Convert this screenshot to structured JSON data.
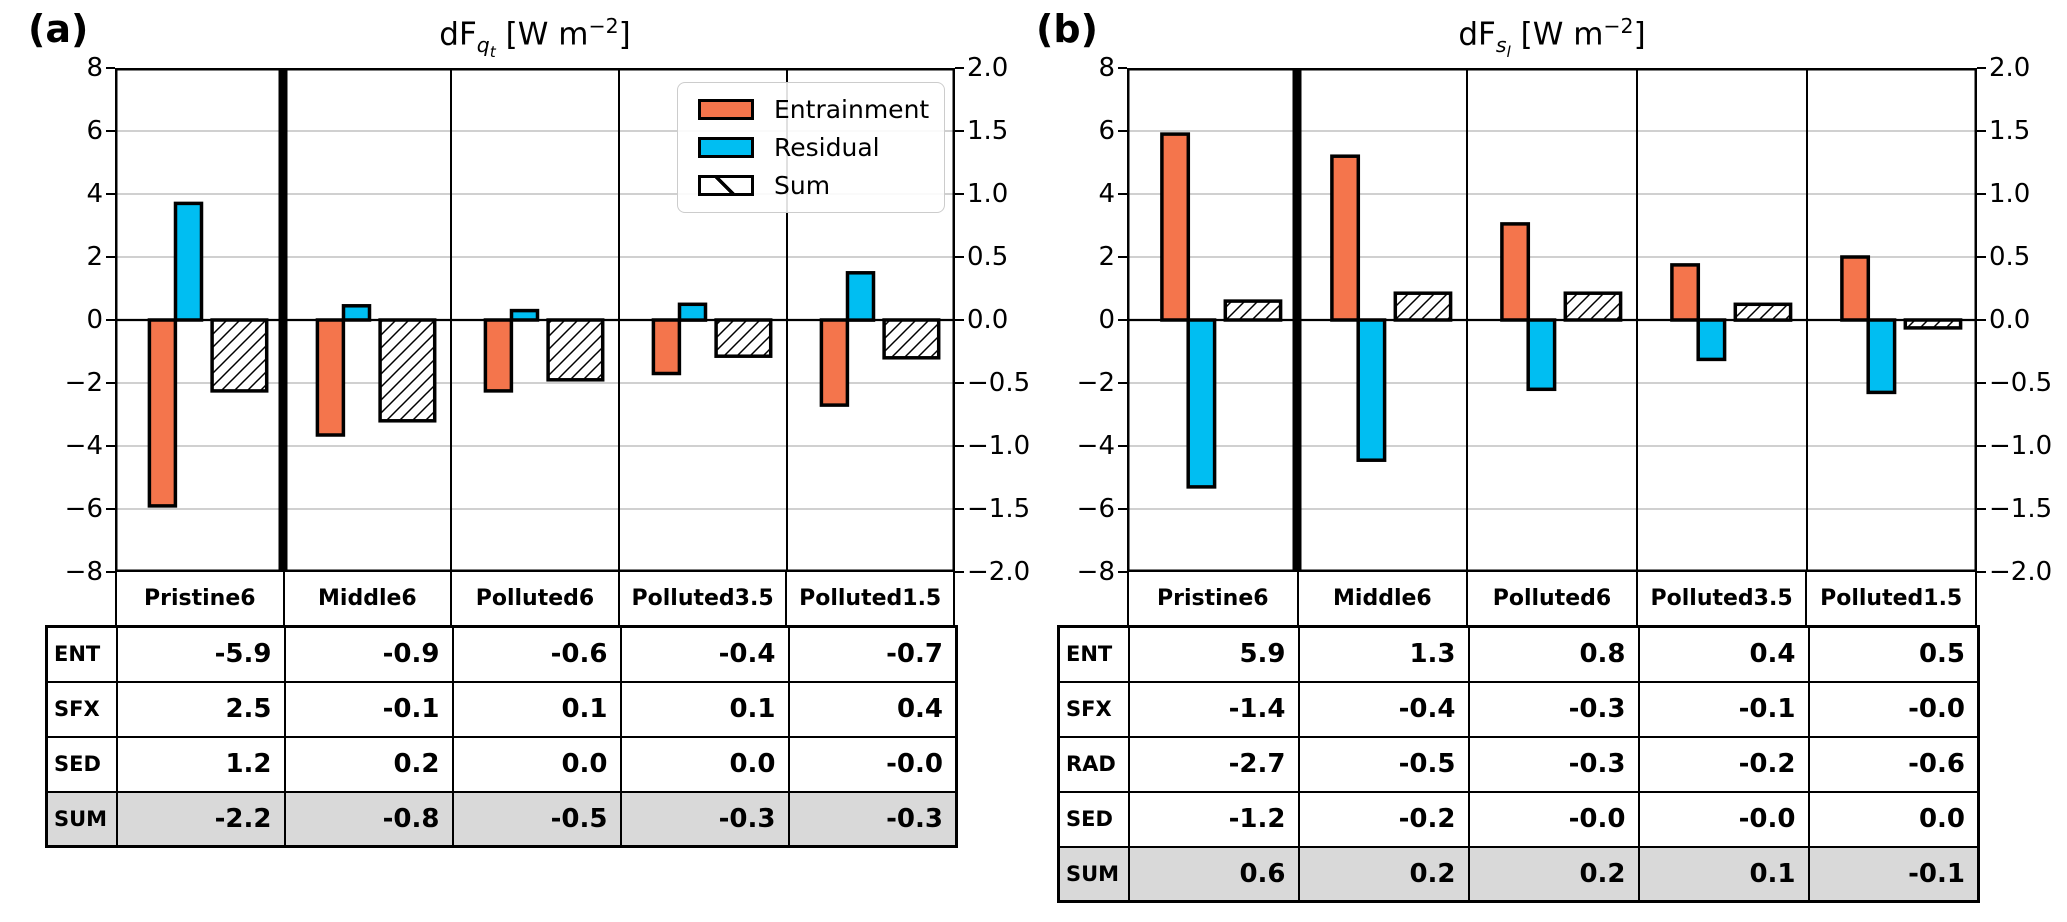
{
  "figure": {
    "panels": [
      {
        "label": "(a)",
        "title": {
          "base": "dF",
          "sub": "q",
          "subsub": "t",
          "units_pre": " [W m",
          "exp": "−2",
          "units_post": "]"
        },
        "legend": {
          "items": [
            {
              "label": "Entrainment",
              "swatch": "entrainment"
            },
            {
              "label": "Residual",
              "swatch": "residual"
            },
            {
              "label": "Sum",
              "swatch": "sum-hatched"
            }
          ]
        }
      },
      {
        "label": "(b)",
        "title": {
          "base": "dF",
          "sub": "s",
          "subsub": "l",
          "units_pre": " [W m",
          "exp": "−2",
          "units_post": "]"
        }
      }
    ]
  },
  "chart_data": [
    {
      "type": "bar",
      "panel": "a",
      "title": "dF_qt [W m^-2]",
      "categories": [
        "Pristine6",
        "Middle6",
        "Polluted6",
        "Polluted3.5",
        "Polluted1.5"
      ],
      "axes": {
        "left_range": [
          -8,
          8
        ],
        "right_range": [
          -2.0,
          2.0
        ],
        "left_tick_labels": [
          "8",
          "6",
          "4",
          "2",
          "0",
          "−2",
          "−4",
          "−6",
          "−8"
        ],
        "right_tick_labels": [
          "2.0",
          "1.5",
          "1.0",
          "0.5",
          "0.0",
          "−0.5",
          "−1.0",
          "−1.5",
          "−2.0"
        ],
        "grid": true,
        "note": "First category (Pristine6) is read on the left axis; remaining categories are read on the right axis (4x zoom). A thick vertical divider separates them."
      },
      "legend_position": "upper right",
      "series": [
        {
          "name": "Entrainment",
          "color": "#F4754C",
          "hatch": false,
          "values": [
            -5.9,
            -3.65,
            -2.25,
            -1.7,
            -2.7
          ],
          "right_axis_values": [
            null,
            -0.9,
            -0.6,
            -0.4,
            -0.7
          ]
        },
        {
          "name": "Residual",
          "color": "#00BEF2",
          "hatch": false,
          "values": [
            3.7,
            0.45,
            0.3,
            0.5,
            1.5
          ],
          "right_axis_values": [
            null,
            0.1,
            0.1,
            0.1,
            0.4
          ]
        },
        {
          "name": "Sum",
          "color": "#FFFFFF",
          "hatch": true,
          "values": [
            -2.25,
            -3.2,
            -1.9,
            -1.15,
            -1.2
          ],
          "right_axis_values": [
            null,
            -0.8,
            -0.5,
            -0.3,
            -0.3
          ]
        }
      ],
      "table": {
        "rows": [
          {
            "label": "ENT",
            "values": [
              "-5.9",
              "-0.9",
              "-0.6",
              "-0.4",
              "-0.7"
            ]
          },
          {
            "label": "SFX",
            "values": [
              "2.5",
              "-0.1",
              "0.1",
              "0.1",
              "0.4"
            ]
          },
          {
            "label": "SED",
            "values": [
              "1.2",
              "0.2",
              "0.0",
              "0.0",
              "-0.0"
            ]
          },
          {
            "label": "SUM",
            "values": [
              "-2.2",
              "-0.8",
              "-0.5",
              "-0.3",
              "-0.3"
            ]
          }
        ]
      }
    },
    {
      "type": "bar",
      "panel": "b",
      "title": "dF_sl [W m^-2]",
      "categories": [
        "Pristine6",
        "Middle6",
        "Polluted6",
        "Polluted3.5",
        "Polluted1.5"
      ],
      "axes": {
        "left_range": [
          -8,
          8
        ],
        "right_range": [
          -2.0,
          2.0
        ],
        "left_tick_labels": [
          "8",
          "6",
          "4",
          "2",
          "0",
          "−2",
          "−4",
          "−6",
          "−8"
        ],
        "right_tick_labels": [
          "2.0",
          "1.5",
          "1.0",
          "0.5",
          "0.0",
          "−0.5",
          "−1.0",
          "−1.5",
          "−2.0"
        ],
        "grid": true,
        "note": "First category (Pristine6) is read on the left axis; remaining categories are read on the right axis (4x zoom). A thick vertical divider separates them."
      },
      "series": [
        {
          "name": "Entrainment",
          "color": "#F4754C",
          "hatch": false,
          "values": [
            5.9,
            5.2,
            3.05,
            1.75,
            2.0
          ],
          "right_axis_values": [
            null,
            1.3,
            0.8,
            0.4,
            0.5
          ]
        },
        {
          "name": "Residual",
          "color": "#00BEF2",
          "hatch": false,
          "values": [
            -5.3,
            -4.45,
            -2.2,
            -1.25,
            -2.3
          ],
          "right_axis_values": [
            null,
            -1.1,
            -0.6,
            -0.3,
            -0.6
          ]
        },
        {
          "name": "Sum",
          "color": "#FFFFFF",
          "hatch": true,
          "values": [
            0.6,
            0.85,
            0.85,
            0.5,
            -0.25
          ],
          "right_axis_values": [
            null,
            0.2,
            0.2,
            0.1,
            -0.1
          ]
        }
      ],
      "table": {
        "rows": [
          {
            "label": "ENT",
            "values": [
              "5.9",
              "1.3",
              "0.8",
              "0.4",
              "0.5"
            ]
          },
          {
            "label": "SFX",
            "values": [
              "-1.4",
              "-0.4",
              "-0.3",
              "-0.1",
              "-0.0"
            ]
          },
          {
            "label": "RAD",
            "values": [
              "-2.7",
              "-0.5",
              "-0.3",
              "-0.2",
              "-0.6"
            ]
          },
          {
            "label": "SED",
            "values": [
              "-1.2",
              "-0.2",
              "-0.0",
              "-0.0",
              "0.0"
            ]
          },
          {
            "label": "SUM",
            "values": [
              "0.6",
              "0.2",
              "0.2",
              "0.1",
              "-0.1"
            ]
          }
        ]
      }
    }
  ]
}
